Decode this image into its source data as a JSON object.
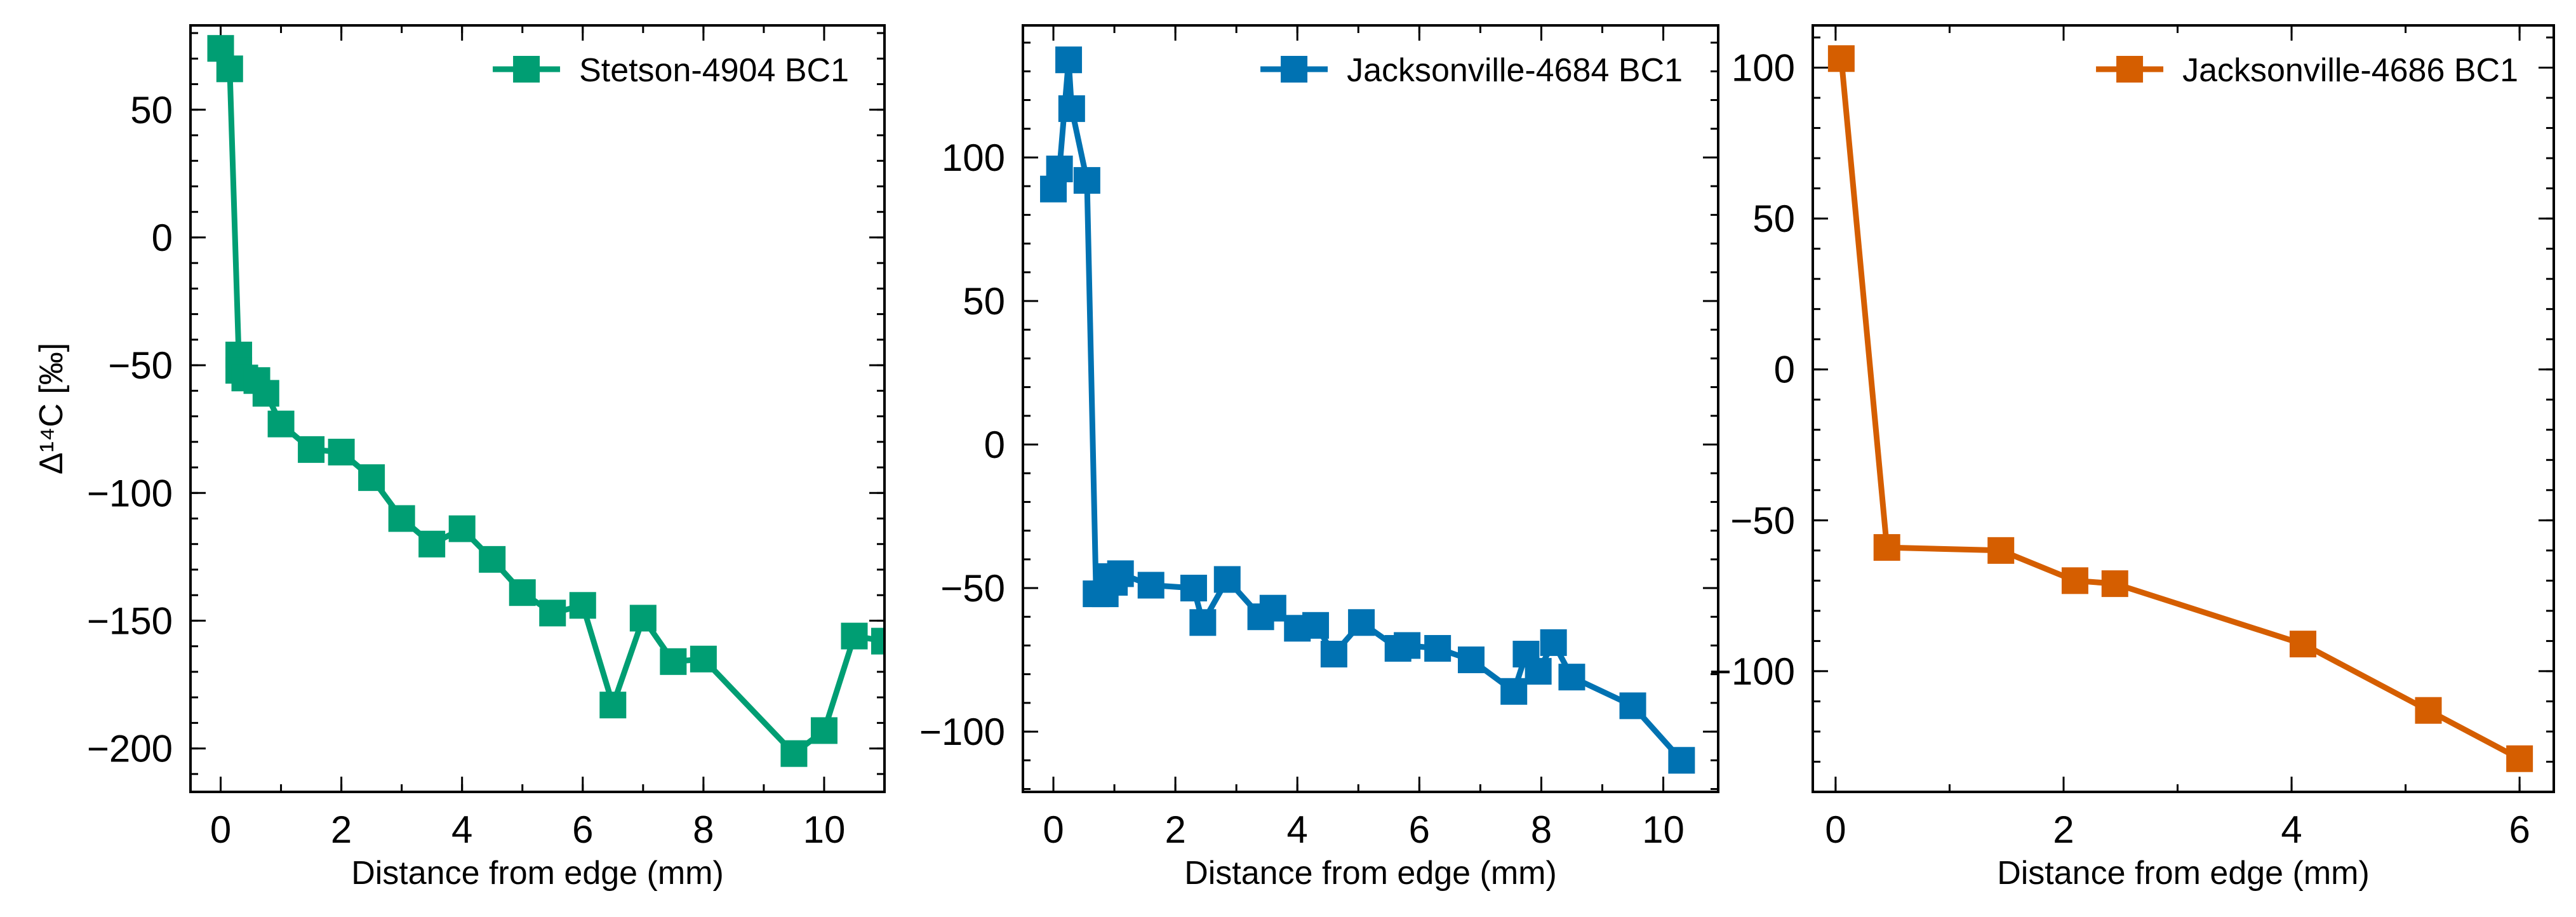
{
  "chart_data": [
    {
      "type": "line",
      "xlabel": "Distance from edge (mm)",
      "ylabel": "Δ¹⁴C [‰]",
      "xlim": [
        -0.5,
        11.0
      ],
      "ylim": [
        -217,
        83
      ],
      "xticks": [
        0,
        2,
        4,
        6,
        8,
        10
      ],
      "yticks": [
        -200,
        -150,
        -100,
        -50,
        0,
        50
      ],
      "legend_position": "top-right",
      "grid": false,
      "marker": "square",
      "series": [
        {
          "name": "Stetson-4904 BC1",
          "color": "#009E73",
          "x": [
            0.0,
            0.15,
            0.3,
            0.3,
            0.4,
            0.6,
            0.75,
            1.0,
            1.5,
            2.0,
            2.5,
            3.0,
            3.5,
            4.0,
            4.5,
            5.0,
            5.5,
            6.0,
            6.5,
            7.0,
            7.5,
            8.0,
            9.5,
            10.0,
            10.5,
            11.0
          ],
          "y": [
            74,
            66,
            -46,
            -52,
            -55,
            -56,
            -61,
            -73,
            -83,
            -84,
            -94,
            -110,
            -120,
            -114,
            -126,
            -139,
            -147,
            -144,
            -183,
            -149,
            -166,
            -165,
            -202,
            -193,
            -156,
            -158
          ]
        }
      ]
    },
    {
      "type": "line",
      "xlabel": "Distance from edge (mm)",
      "ylabel": "",
      "xlim": [
        -0.5,
        10.9
      ],
      "ylim": [
        -121,
        146
      ],
      "xticks": [
        0,
        2,
        4,
        6,
        8,
        10
      ],
      "yticks": [
        -100,
        -50,
        0,
        50,
        100
      ],
      "legend_position": "top-right",
      "grid": false,
      "marker": "square",
      "series": [
        {
          "name": "Jacksonville-4684 BC1",
          "color": "#0072B2",
          "x": [
            0.0,
            0.1,
            0.25,
            0.3,
            0.55,
            0.7,
            0.85,
            0.9,
            1.0,
            1.1,
            1.6,
            2.3,
            2.45,
            2.85,
            3.4,
            3.6,
            4.0,
            4.3,
            4.6,
            5.05,
            5.65,
            5.8,
            6.3,
            6.85,
            7.55,
            7.75,
            7.95,
            8.2,
            8.5,
            9.5,
            10.3
          ],
          "y": [
            89,
            96,
            134,
            117,
            92,
            -52,
            -52,
            -46,
            -48,
            -45,
            -49,
            -50,
            -62,
            -47,
            -60,
            -57,
            -64,
            -63,
            -73,
            -62,
            -71,
            -70,
            -71,
            -75,
            -86,
            -73,
            -79,
            -69,
            -81,
            -91,
            -110
          ]
        }
      ]
    },
    {
      "type": "line",
      "xlabel": "Distance from edge (mm)",
      "ylabel": "",
      "xlim": [
        -0.2,
        6.3
      ],
      "ylim": [
        -140,
        114
      ],
      "xticks": [
        0,
        2,
        4,
        6
      ],
      "yticks": [
        -100,
        -50,
        0,
        50,
        100
      ],
      "legend_position": "top-right",
      "grid": false,
      "marker": "square",
      "series": [
        {
          "name": "Jacksonville-4686 BC1",
          "color": "#D55E00",
          "x": [
            0.05,
            0.45,
            1.45,
            2.1,
            2.45,
            4.1,
            5.2,
            6.0
          ],
          "y": [
            103,
            -59,
            -60,
            -70,
            -71,
            -91,
            -113,
            -129
          ]
        }
      ]
    }
  ]
}
